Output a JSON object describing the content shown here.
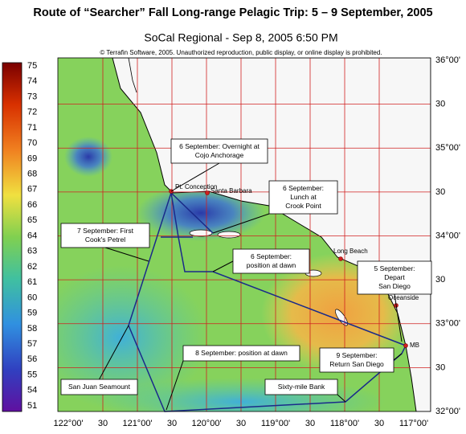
{
  "title": "Route of “Searcher” Fall Long-range Pelagic Trip:  5 – 9 September, 2005",
  "subtitle": "SoCal Regional - Sep 8, 2005 6:50 PM",
  "copyright": "© Terrafin Software,  2005.  Unauthorized reproduction, public display, or online display is prohibited.",
  "colorbar": {
    "labels": [
      75,
      74,
      73,
      72,
      71,
      70,
      69,
      68,
      67,
      66,
      65,
      64,
      63,
      62,
      61,
      60,
      59,
      58,
      57,
      56,
      55,
      54,
      51
    ]
  },
  "lat_labels": [
    "36°00'",
    "30",
    "35°00'",
    "30",
    "34°00'",
    "30",
    "33°00'",
    "30",
    "32°00'"
  ],
  "lon_labels": [
    "122°00'",
    "30",
    "121°00'",
    "30",
    "120°00'",
    "30",
    "119°00'",
    "30",
    "118°00'",
    "30",
    "117°00'"
  ],
  "places": [
    {
      "label": "Pt. Conception"
    },
    {
      "label": "Santa Barbara"
    },
    {
      "label": "Long Beach"
    },
    {
      "label": "Oceanside"
    },
    {
      "label": "MB"
    }
  ],
  "annotations": [
    {
      "lines": [
        "6 September: Overnight at",
        "Cojo Anchorage"
      ]
    },
    {
      "lines": [
        "6 September:",
        "Lunch at",
        "Crook Point"
      ]
    },
    {
      "lines": [
        "7 September:  First",
        "Cook's Petrel"
      ]
    },
    {
      "lines": [
        "6 September:",
        "position at dawn"
      ]
    },
    {
      "lines": [
        "5 September:",
        "Depart",
        "San Diego"
      ]
    },
    {
      "lines": [
        "8 September:  position at dawn"
      ]
    },
    {
      "lines": [
        "9 September:",
        "Return San Diego"
      ]
    },
    {
      "lines": [
        "San Juan Seamount"
      ]
    },
    {
      "lines": [
        "Sixty-mile Bank"
      ]
    }
  ]
}
